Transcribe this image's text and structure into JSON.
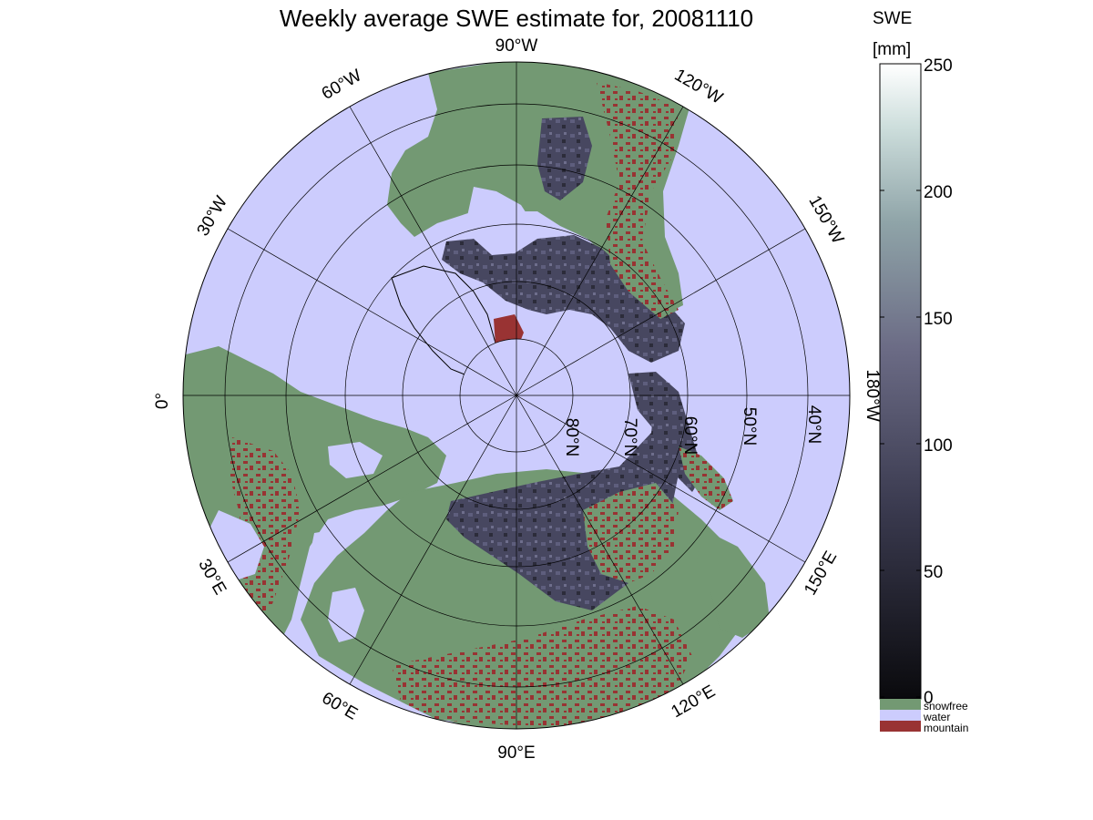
{
  "title": "Weekly average SWE estimate for, 20081110",
  "colorbar": {
    "title": "SWE",
    "unit": "[mm]",
    "ticks": [
      "250",
      "200",
      "150",
      "100",
      "50",
      "0"
    ],
    "categories": [
      {
        "label": "snowfree",
        "color": "#739973"
      },
      {
        "label": "water",
        "color": "#ccccfd"
      },
      {
        "label": "mountain",
        "color": "#993333"
      }
    ]
  },
  "longitude_labels": [
    "90°W",
    "120°W",
    "150°W",
    "180°W",
    "150°E",
    "120°E",
    "90°E",
    "60°E",
    "30°E",
    "0°",
    "30°W",
    "60°W"
  ],
  "latitude_labels": [
    "80°N",
    "70°N",
    "60°N",
    "50°N",
    "40°N"
  ],
  "colors": {
    "water": "#ccccfd",
    "snowfree": "#739973",
    "mountain": "#993333",
    "swe_low": "#111116",
    "swe_mid": "#5c5c7a",
    "swe_high": "#ffffff"
  }
}
